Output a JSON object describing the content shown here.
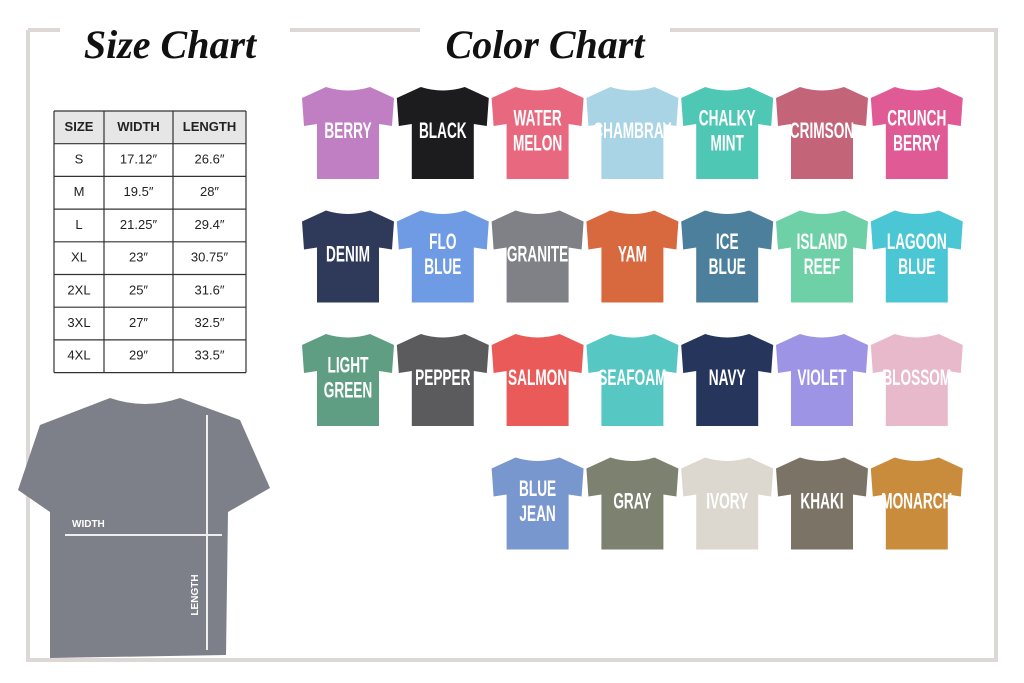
{
  "size_chart": {
    "title": "Size Chart",
    "table": {
      "header": [
        "SIZE",
        "WIDTH",
        "LENGTH"
      ],
      "rows": [
        [
          "S",
          "17.12″",
          "26.6″"
        ],
        [
          "M",
          "19.5″",
          "28″"
        ],
        [
          "L",
          "21.25″",
          "29.4″"
        ],
        [
          "XL",
          "23″",
          "30.75″"
        ],
        [
          "2XL",
          "25″",
          "31.6″"
        ],
        [
          "3XL",
          "27″",
          "32.5″"
        ],
        [
          "4XL",
          "29″",
          "33.5″"
        ]
      ]
    },
    "diagram": {
      "width_label": "WIDTH",
      "length_label": "LENGTH"
    }
  },
  "color_chart": {
    "title": "Color Chart",
    "swatches": [
      {
        "lines": [
          "BERRY"
        ],
        "color": "#c07fc3"
      },
      {
        "lines": [
          "BLACK"
        ],
        "color": "#1c1c1e"
      },
      {
        "lines": [
          "WATER",
          "MELON"
        ],
        "color": "#e8687f"
      },
      {
        "lines": [
          "CHAMBRAY"
        ],
        "color": "#a9d4e6"
      },
      {
        "lines": [
          "CHALKY",
          "MINT"
        ],
        "color": "#4fc7b5"
      },
      {
        "lines": [
          "CRIMSON"
        ],
        "color": "#c36479"
      },
      {
        "lines": [
          "CRUNCH",
          "BERRY"
        ],
        "color": "#e05a96"
      },
      {
        "lines": [
          "DENIM"
        ],
        "color": "#2f3a5a"
      },
      {
        "lines": [
          "FLO",
          "BLUE"
        ],
        "color": "#6e9be3"
      },
      {
        "lines": [
          "GRANITE"
        ],
        "color": "#7f8187"
      },
      {
        "lines": [
          "YAM"
        ],
        "color": "#d8693f"
      },
      {
        "lines": [
          "ICE",
          "BLUE"
        ],
        "color": "#4c7f9b"
      },
      {
        "lines": [
          "ISLAND",
          "REEF"
        ],
        "color": "#6dd0a6"
      },
      {
        "lines": [
          "LAGOON",
          "BLUE"
        ],
        "color": "#4bc6d4"
      },
      {
        "lines": [
          "LIGHT",
          "GREEN"
        ],
        "color": "#5f9e83"
      },
      {
        "lines": [
          "PEPPER"
        ],
        "color": "#5b5b5d"
      },
      {
        "lines": [
          "SALMON"
        ],
        "color": "#ea5a59"
      },
      {
        "lines": [
          "SEAFOAM"
        ],
        "color": "#57c7c4"
      },
      {
        "lines": [
          "NAVY"
        ],
        "color": "#26355c"
      },
      {
        "lines": [
          "VIOLET"
        ],
        "color": "#9e94e6"
      },
      {
        "lines": [
          "BLOSSOM"
        ],
        "color": "#e8b9cb"
      },
      {
        "lines": [
          "BLUE",
          "JEAN"
        ],
        "color": "#7997cf"
      },
      {
        "lines": [
          "GRAY"
        ],
        "color": "#7d8270"
      },
      {
        "lines": [
          "IVORY"
        ],
        "color": "#dcd8d0"
      },
      {
        "lines": [
          "KHAKI"
        ],
        "color": "#7b7366"
      },
      {
        "lines": [
          "MONARCH"
        ],
        "color": "#c88c3c"
      }
    ]
  }
}
